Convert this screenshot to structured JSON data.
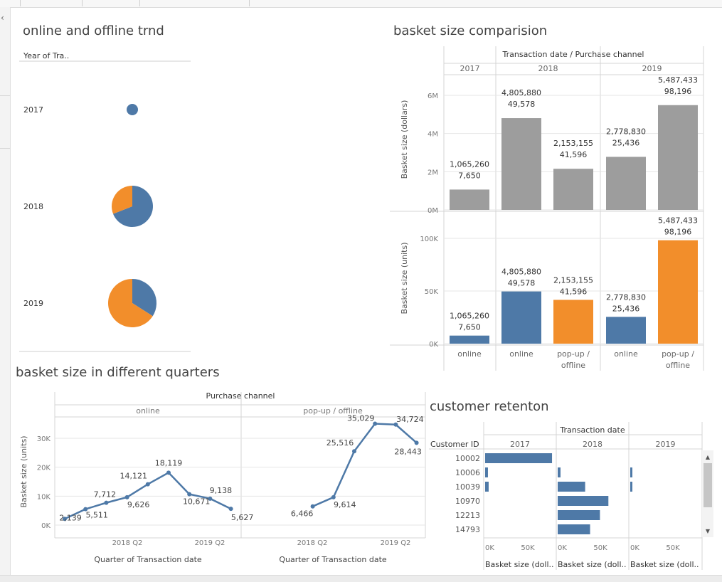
{
  "colors": {
    "online": "#4e79a7",
    "offline": "#f28e2b",
    "gray": "#9d9d9d",
    "grid": "#e6e6e6"
  },
  "icons": {
    "collapse": "chevron-left-icon"
  },
  "pie_panel": {
    "title": "online and offline trnd",
    "column_header": "Year of Tra..",
    "rows": [
      {
        "year": "2017",
        "online_share": 1.0
      },
      {
        "year": "2018",
        "online_share": 0.69
      },
      {
        "year": "2019",
        "online_share": 0.34
      }
    ]
  },
  "basket_panel": {
    "title": "basket size comparision",
    "header": "Transaction date / Purchase channel",
    "years": [
      "2017",
      "2018",
      "2019"
    ],
    "channels": [
      "online",
      "online",
      "pop-up / offline",
      "online",
      "pop-up / offline"
    ],
    "dollars_axis": {
      "label": "Basket size (dollars)",
      "ticks": [
        "0M",
        "2M",
        "4M",
        "6M"
      ]
    },
    "units_axis": {
      "label": "Basket size (units)",
      "ticks": [
        "0K",
        "50K",
        "100K"
      ]
    },
    "bars": [
      {
        "year": "2017",
        "channel": "online",
        "dollars": 1065260,
        "units": 7650,
        "dollars_label": "1,065,260",
        "units_label": "7,650"
      },
      {
        "year": "2018",
        "channel": "online",
        "dollars": 4805880,
        "units": 49578,
        "dollars_label": "4,805,880",
        "units_label": "49,578"
      },
      {
        "year": "2018",
        "channel": "pop-up / offline",
        "dollars": 2153155,
        "units": 41596,
        "dollars_label": "2,153,155",
        "units_label": "41,596"
      },
      {
        "year": "2019",
        "channel": "online",
        "dollars": 2778830,
        "units": 25436,
        "dollars_label": "2,778,830",
        "units_label": "25,436"
      },
      {
        "year": "2019",
        "channel": "pop-up / offline",
        "dollars": 5487433,
        "units": 98196,
        "dollars_label": "5,487,433",
        "units_label": "98,196"
      }
    ]
  },
  "quarters_panel": {
    "title": "basket size in different quarters",
    "header": "Purchase channel",
    "ylabel": "Basket size (units)",
    "yticks": [
      "0K",
      "10K",
      "20K",
      "30K"
    ],
    "xlabel": "Quarter of Transaction date",
    "xticks": [
      "2018 Q2",
      "2019 Q2"
    ],
    "panes": [
      {
        "name": "online",
        "points": [
          {
            "x": 0,
            "v": 2139,
            "label": "2,139"
          },
          {
            "x": 1,
            "v": 5511,
            "label": "5,511"
          },
          {
            "x": 2,
            "v": 7712,
            "label": "7,712"
          },
          {
            "x": 3,
            "v": 9626,
            "label": "9,626"
          },
          {
            "x": 4,
            "v": 14121,
            "label": "14,121"
          },
          {
            "x": 5,
            "v": 18119,
            "label": "18,119"
          },
          {
            "x": 6,
            "v": 10671,
            "label": "10,671"
          },
          {
            "x": 7,
            "v": 9138,
            "label": "9,138"
          },
          {
            "x": 8,
            "v": 5627,
            "label": "5,627"
          }
        ]
      },
      {
        "name": "pop-up / offline",
        "points": [
          {
            "x": 3,
            "v": 6466,
            "label": "6,466"
          },
          {
            "x": 4,
            "v": 9614,
            "label": "9,614"
          },
          {
            "x": 5,
            "v": 25516,
            "label": "25,516"
          },
          {
            "x": 6,
            "v": 35029,
            "label": "35,029"
          },
          {
            "x": 7,
            "v": 34724,
            "label": "34,724"
          },
          {
            "x": 8,
            "v": 28443,
            "label": "28,443"
          }
        ]
      }
    ]
  },
  "retention_panel": {
    "title": "customer retenton",
    "header": "Transaction date",
    "row_header": "Customer ID",
    "years": [
      "2017",
      "2018",
      "2019"
    ],
    "xlabel": "Basket size (doll..",
    "xticks": [
      "0K",
      "50K"
    ],
    "rows": [
      {
        "id": "10002",
        "values": [
          95000,
          0,
          0
        ]
      },
      {
        "id": "10006",
        "values": [
          4000,
          4000,
          2000
        ]
      },
      {
        "id": "10039",
        "values": [
          5000,
          39000,
          2000
        ]
      },
      {
        "id": "10970",
        "values": [
          0,
          72000,
          0
        ]
      },
      {
        "id": "12213",
        "values": [
          0,
          60000,
          0
        ]
      },
      {
        "id": "14793",
        "values": [
          0,
          46000,
          0
        ]
      }
    ]
  },
  "chart_data": [
    {
      "type": "pie",
      "title": "online and offline trnd",
      "categories": [
        "2017",
        "2018",
        "2019"
      ],
      "series": [
        {
          "name": "online",
          "values": [
            1.0,
            0.69,
            0.34
          ]
        },
        {
          "name": "pop-up / offline",
          "values": [
            0.0,
            0.31,
            0.66
          ]
        }
      ]
    },
    {
      "type": "bar",
      "title": "basket size comparision",
      "categories": [
        "2017 online",
        "2018 online",
        "2018 pop-up / offline",
        "2019 online",
        "2019 pop-up / offline"
      ],
      "series": [
        {
          "name": "Basket size (dollars)",
          "values": [
            1065260,
            4805880,
            2153155,
            2778830,
            5487433
          ]
        },
        {
          "name": "Basket size (units)",
          "values": [
            7650,
            49578,
            41596,
            25436,
            98196
          ]
        }
      ]
    },
    {
      "type": "line",
      "title": "basket size in different quarters",
      "ylabel": "Basket size (units)",
      "xlabel": "Quarter of Transaction date",
      "series": [
        {
          "name": "online",
          "values": [
            2139,
            5511,
            7712,
            9626,
            14121,
            18119,
            10671,
            9138,
            5627
          ]
        },
        {
          "name": "pop-up / offline",
          "values": [
            6466,
            9614,
            25516,
            35029,
            34724,
            28443
          ]
        }
      ]
    },
    {
      "type": "bar",
      "title": "customer retenton",
      "categories": [
        "10002",
        "10006",
        "10039",
        "10970",
        "12213",
        "14793"
      ],
      "series": [
        {
          "name": "2017",
          "values": [
            95000,
            4000,
            5000,
            0,
            0,
            0
          ]
        },
        {
          "name": "2018",
          "values": [
            0,
            4000,
            39000,
            72000,
            60000,
            46000
          ]
        },
        {
          "name": "2019",
          "values": [
            0,
            2000,
            2000,
            0,
            0,
            0
          ]
        }
      ]
    }
  ]
}
